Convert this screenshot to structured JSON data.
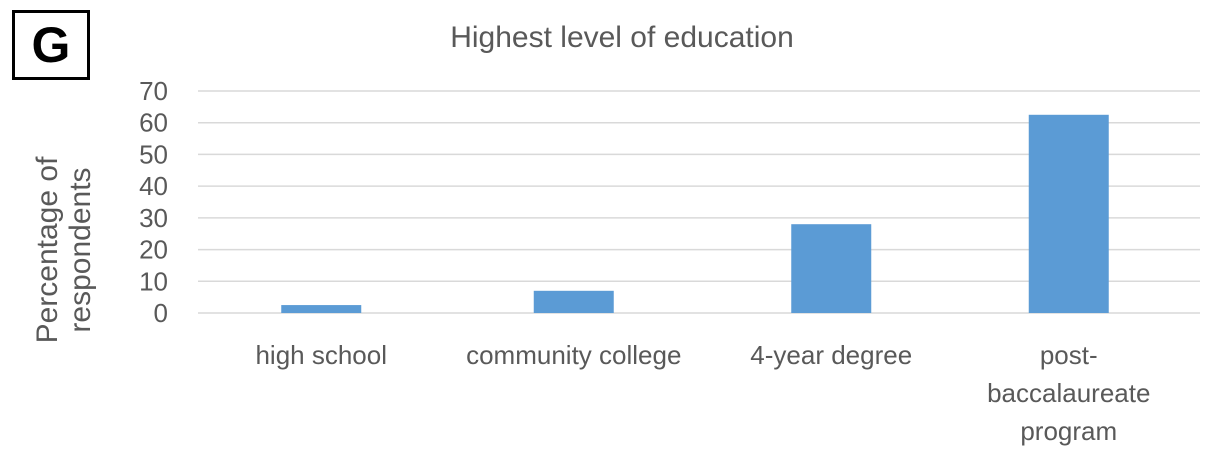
{
  "panel_label": "G",
  "chart_data": {
    "type": "bar",
    "title": "Highest level of education",
    "xlabel": "",
    "ylabel": "Percentage of respondents",
    "categories": [
      "high school",
      "community college",
      "4-year degree",
      "post-baccalaureate program"
    ],
    "values": [
      2.5,
      7,
      28,
      62.5
    ],
    "ylim": [
      0,
      70
    ],
    "yticks": [
      0,
      10,
      20,
      30,
      40,
      50,
      60,
      70
    ],
    "grid": true,
    "bar_color": "#5b9bd5",
    "grid_color": "#d9d9d9"
  }
}
